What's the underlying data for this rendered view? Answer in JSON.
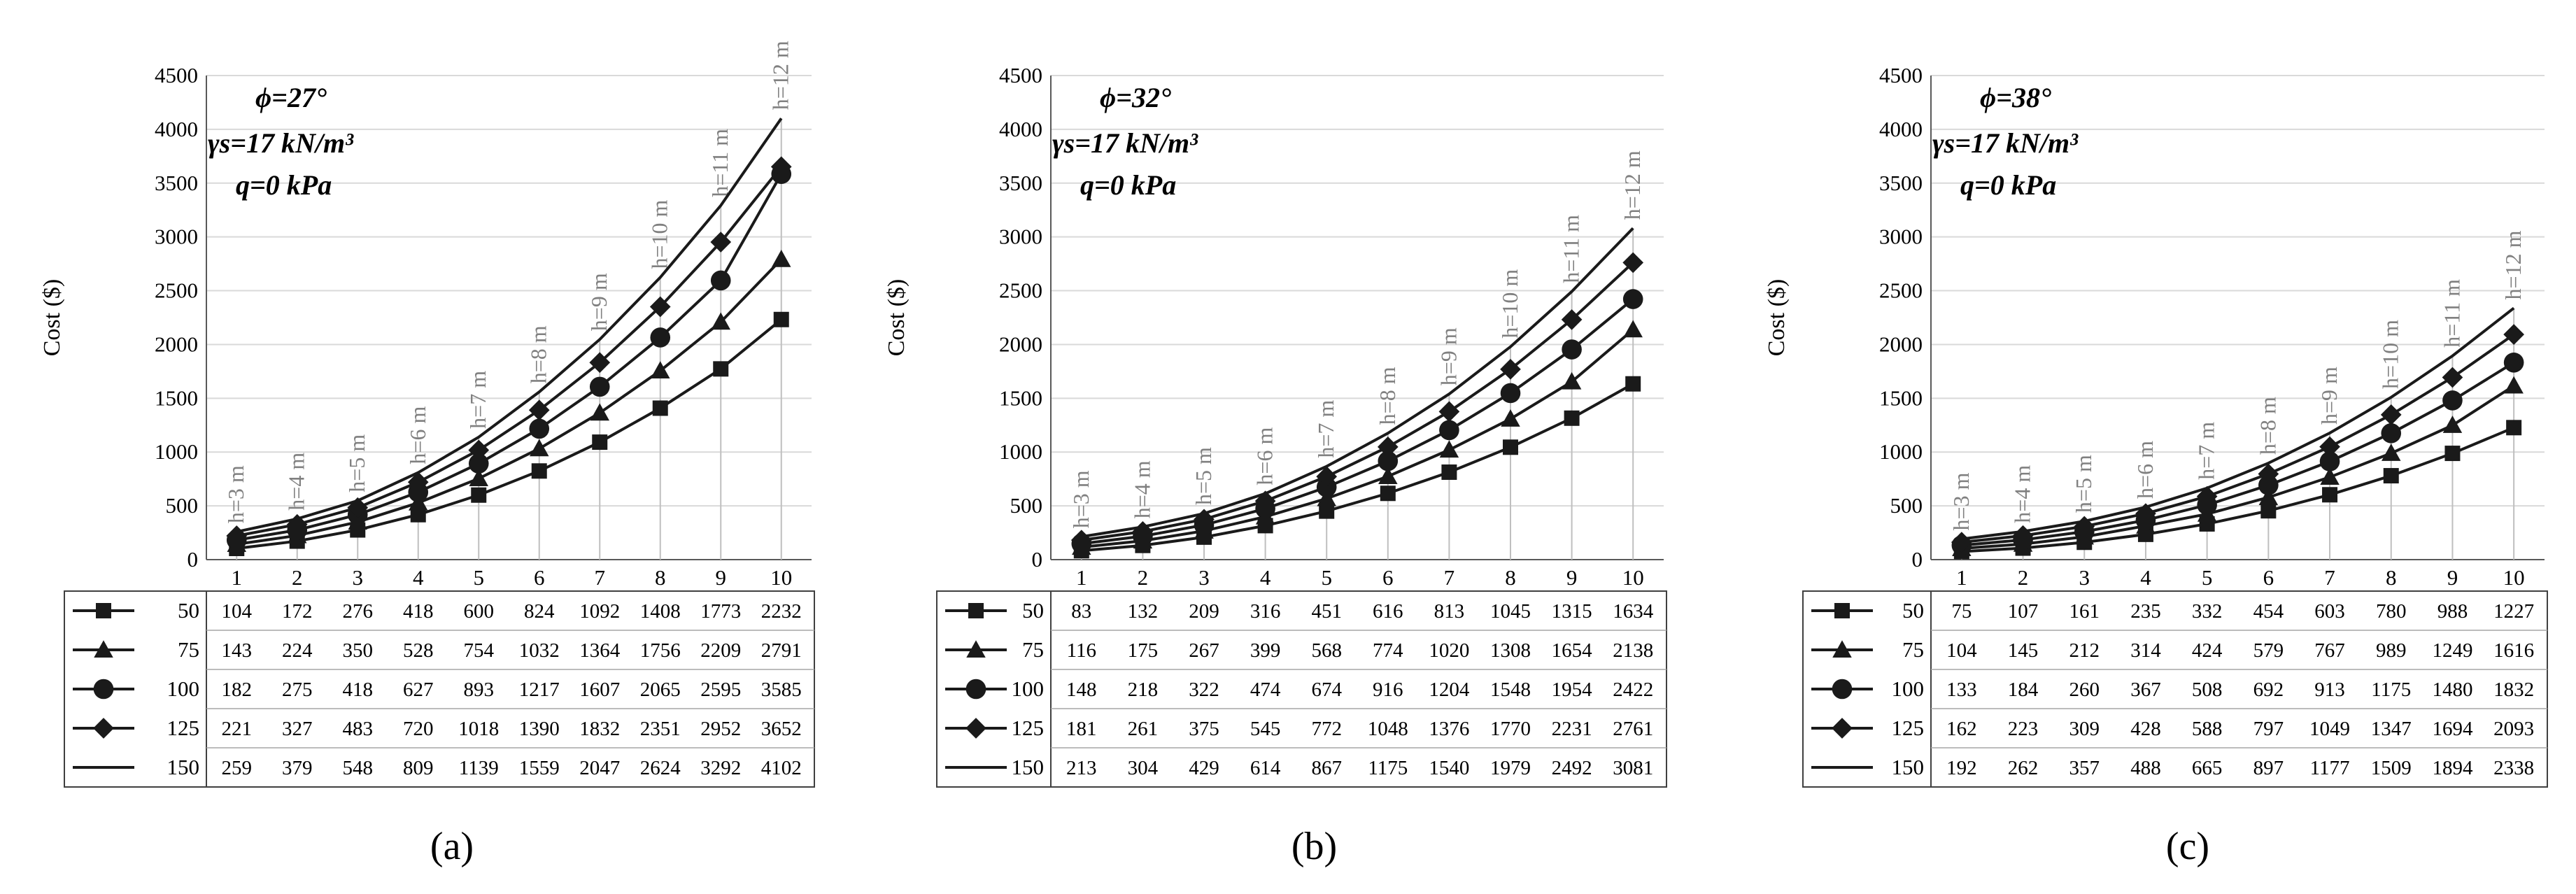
{
  "chart_data": [
    {
      "type": "line",
      "panel_label": "(a)",
      "annotations": [
        "ϕ=27°",
        "γs=17 kN/m³",
        "q=0 kPa"
      ],
      "ylabel": "Cost ($)",
      "xlabel": "",
      "ylim": [
        0,
        4500
      ],
      "yticks": [
        "0",
        "500",
        "1000",
        "1500",
        "2000",
        "2500",
        "3000",
        "3500",
        "4000",
        "4500"
      ],
      "categories": [
        "1",
        "2",
        "3",
        "4",
        "5",
        "6",
        "7",
        "8",
        "9",
        "10"
      ],
      "height_labels": [
        "h=3 m",
        "h=4 m",
        "h=5 m",
        "h=6 m",
        "h=7 m",
        "h=8 m",
        "h=9 m",
        "h=10 m",
        "h=11 m",
        "h=12 m"
      ],
      "series": [
        {
          "name": "50",
          "marker": "square",
          "values": [
            104,
            172,
            276,
            418,
            600,
            824,
            1092,
            1408,
            1773,
            2232
          ]
        },
        {
          "name": "75",
          "marker": "triangle",
          "values": [
            143,
            224,
            350,
            528,
            754,
            1032,
            1364,
            1756,
            2209,
            2791
          ]
        },
        {
          "name": "100",
          "marker": "circle",
          "values": [
            182,
            275,
            418,
            627,
            893,
            1217,
            1607,
            2065,
            2595,
            3585
          ]
        },
        {
          "name": "125",
          "marker": "diamond",
          "values": [
            221,
            327,
            483,
            720,
            1018,
            1390,
            1832,
            2351,
            2952,
            3652
          ]
        },
        {
          "name": "150",
          "marker": "none",
          "values": [
            259,
            379,
            548,
            809,
            1139,
            1559,
            2047,
            2624,
            3292,
            4102
          ]
        }
      ]
    },
    {
      "type": "line",
      "panel_label": "(b)",
      "annotations": [
        "ϕ=32°",
        "γs=17 kN/m³",
        "q=0 kPa"
      ],
      "ylabel": "Cost ($)",
      "xlabel": "",
      "ylim": [
        0,
        4500
      ],
      "yticks": [
        "0",
        "500",
        "1000",
        "1500",
        "2000",
        "2500",
        "3000",
        "3500",
        "4000",
        "4500"
      ],
      "categories": [
        "1",
        "2",
        "3",
        "4",
        "5",
        "6",
        "7",
        "8",
        "9",
        "10"
      ],
      "height_labels": [
        "h=3 m",
        "h=4 m",
        "h=5 m",
        "h=6 m",
        "h=7 m",
        "h=8 m",
        "h=9 m",
        "h=10 m",
        "h=11 m",
        "h=12 m"
      ],
      "series": [
        {
          "name": "50",
          "marker": "square",
          "values": [
            83,
            132,
            209,
            316,
            451,
            616,
            813,
            1045,
            1315,
            1634
          ]
        },
        {
          "name": "75",
          "marker": "triangle",
          "values": [
            116,
            175,
            267,
            399,
            568,
            774,
            1020,
            1308,
            1654,
            2138
          ]
        },
        {
          "name": "100",
          "marker": "circle",
          "values": [
            148,
            218,
            322,
            474,
            674,
            916,
            1204,
            1548,
            1954,
            2422
          ]
        },
        {
          "name": "125",
          "marker": "diamond",
          "values": [
            181,
            261,
            375,
            545,
            772,
            1048,
            1376,
            1770,
            2231,
            2761
          ]
        },
        {
          "name": "150",
          "marker": "none",
          "values": [
            213,
            304,
            429,
            614,
            867,
            1175,
            1540,
            1979,
            2492,
            3081
          ]
        }
      ]
    },
    {
      "type": "line",
      "panel_label": "(c)",
      "annotations": [
        "ϕ=38°",
        "γs=17 kN/m³",
        "q=0 kPa"
      ],
      "ylabel": "Cost ($)",
      "xlabel": "",
      "ylim": [
        0,
        4500
      ],
      "yticks": [
        "0",
        "500",
        "1000",
        "1500",
        "2000",
        "2500",
        "3000",
        "3500",
        "4000",
        "4500"
      ],
      "categories": [
        "1",
        "2",
        "3",
        "4",
        "5",
        "6",
        "7",
        "8",
        "9",
        "10"
      ],
      "height_labels": [
        "h=3 m",
        "h=4 m",
        "h=5 m",
        "h=6 m",
        "h=7 m",
        "h=8 m",
        "h=9 m",
        "h=10 m",
        "h=11 m",
        "h=12 m"
      ],
      "series": [
        {
          "name": "50",
          "marker": "square",
          "values": [
            75,
            107,
            161,
            235,
            332,
            454,
            603,
            780,
            988,
            1227
          ]
        },
        {
          "name": "75",
          "marker": "triangle",
          "values": [
            104,
            145,
            212,
            314,
            424,
            579,
            767,
            989,
            1249,
            1616
          ]
        },
        {
          "name": "100",
          "marker": "circle",
          "values": [
            133,
            184,
            260,
            367,
            508,
            692,
            913,
            1175,
            1480,
            1832
          ]
        },
        {
          "name": "125",
          "marker": "diamond",
          "values": [
            162,
            223,
            309,
            428,
            588,
            797,
            1049,
            1347,
            1694,
            2093
          ]
        },
        {
          "name": "150",
          "marker": "none",
          "values": [
            192,
            262,
            357,
            488,
            665,
            897,
            1177,
            1509,
            1894,
            2338
          ]
        }
      ]
    }
  ],
  "colors": {
    "line": "#1a1a1a",
    "grid": "#d9d9d9",
    "guide": "#bfbfbf",
    "height_label": "#808080",
    "text": "#000000"
  }
}
